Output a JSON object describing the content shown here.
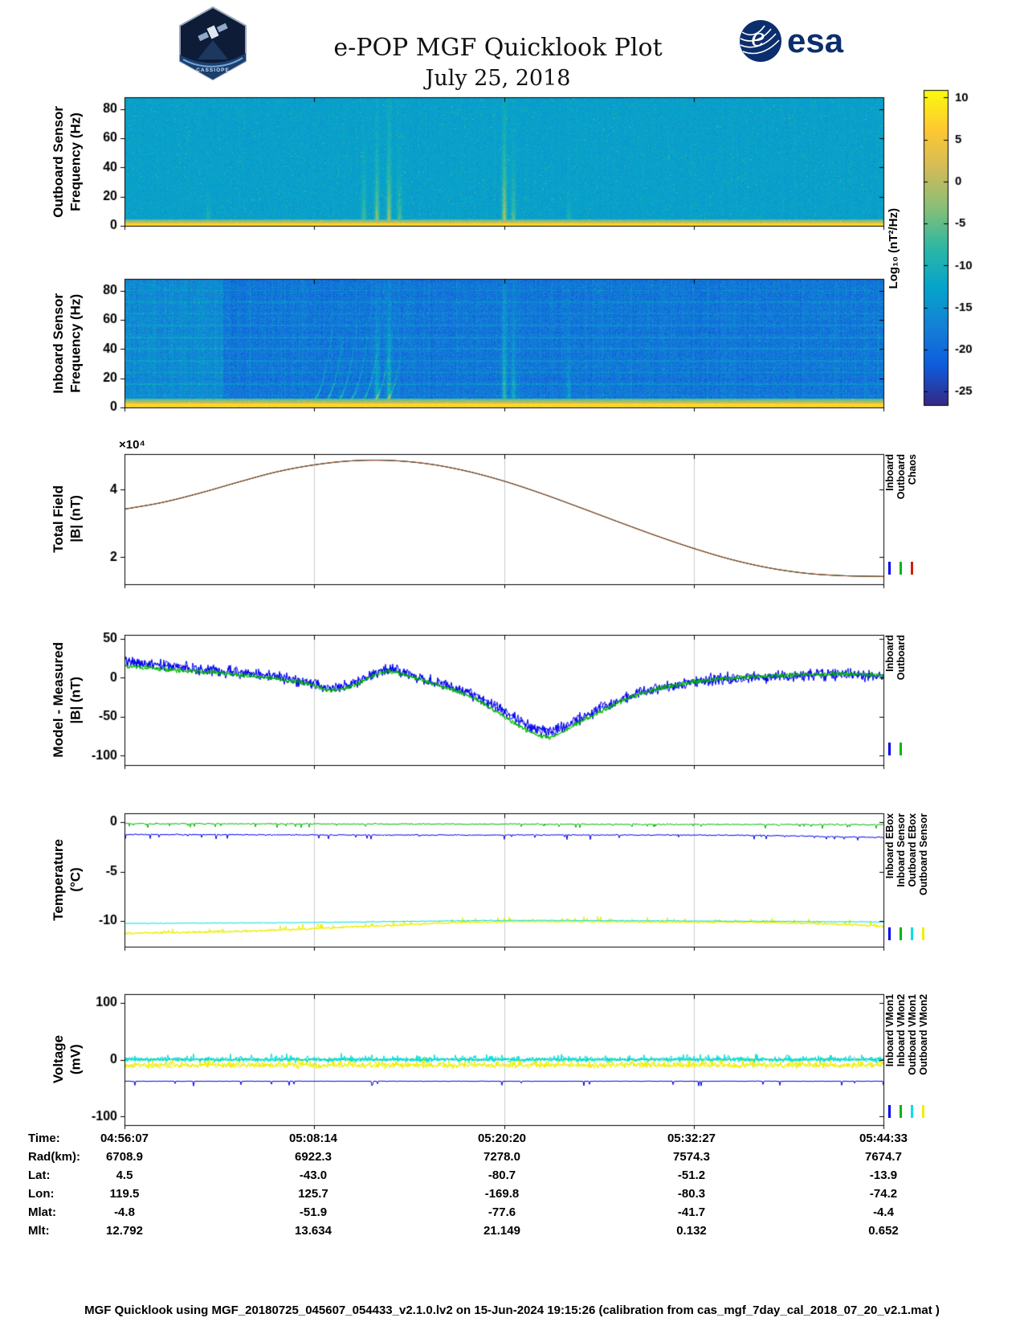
{
  "header": {
    "title": "e-POP MGF Quicklook Plot",
    "date": "July 25, 2018",
    "esa_logo_text": "esa",
    "esa_emblem_letter": "e",
    "cassiope_text": "CASSIOPE"
  },
  "colorbar": {
    "label": "Log₁₀ (nT²/Hz)",
    "ticks": [
      10,
      5,
      0,
      -5,
      -10,
      -15,
      -20,
      -25
    ],
    "range": [
      -26.6,
      10.9
    ]
  },
  "chart_data": [
    {
      "id": "outboard_spectrogram",
      "type": "heatmap",
      "ylabel": "Outboard Sensor\nFrequency (Hz)",
      "ylim": [
        0,
        88
      ],
      "yticks": [
        0,
        20,
        40,
        60,
        80
      ],
      "background_level": -13,
      "noise_sd": 1.8,
      "column_noise_sd": 0.4,
      "speckle_p": 0.004,
      "speckle_amp": 8,
      "bottom_band": {
        "yellow_below_hz": 1.8,
        "yellow_level": 7.5,
        "fade_to_hz": 4.5
      },
      "streaks": [
        {
          "t": 0.11,
          "height_hz": 10,
          "amp": 7
        },
        {
          "t": 0.315,
          "height_hz": 22,
          "amp": 9
        },
        {
          "t": 0.332,
          "height_hz": 30,
          "amp": 12
        },
        {
          "t": 0.348,
          "height_hz": 36,
          "amp": 13
        },
        {
          "t": 0.362,
          "height_hz": 20,
          "amp": 9
        },
        {
          "t": 0.5,
          "height_hz": 40,
          "amp": 14
        },
        {
          "t": 0.512,
          "height_hz": 26,
          "amp": 9
        },
        {
          "t": 0.585,
          "height_hz": 9,
          "amp": 6
        }
      ]
    },
    {
      "id": "inboard_spectrogram",
      "type": "heatmap",
      "ylabel": "Inboard Sensor\nFrequency (Hz)",
      "ylim": [
        0,
        88
      ],
      "yticks": [
        0,
        20,
        40,
        60,
        80
      ],
      "background_level": -18.5,
      "noise_sd": 2.6,
      "column_noise_sd": 1.1,
      "row_noise_sd": 0.7,
      "speckle_p": 0.01,
      "speckle_amp": 7,
      "harmonic_spacing_hz": 8,
      "harmonic_boost": 3,
      "bright_region": {
        "t_end": 0.13,
        "boost": 2.5
      },
      "curves": [
        0.243,
        0.259,
        0.275,
        0.291,
        0.307,
        0.323,
        0.339
      ],
      "curve_span_t": 0.035,
      "curve_max_hz": 72,
      "curve_amp": 9,
      "bottom_band": {
        "yellow_below_hz": 2.5,
        "yellow_level": 7.5,
        "fade_to_hz": 6
      },
      "streaks": [
        {
          "t": 0.332,
          "height_hz": 45,
          "amp": 10
        },
        {
          "t": 0.348,
          "height_hz": 55,
          "amp": 11
        },
        {
          "t": 0.5,
          "height_hz": 60,
          "amp": 12
        },
        {
          "t": 0.512,
          "height_hz": 40,
          "amp": 9
        },
        {
          "t": 0.585,
          "height_hz": 20,
          "amp": 7
        }
      ]
    },
    {
      "id": "total_field",
      "type": "line",
      "ylabel": "Total Field\n|B| (nT)",
      "scale_label": "×10⁴",
      "ylim": [
        1.2,
        5.05
      ],
      "yticks": [
        2,
        4
      ],
      "x": [
        0,
        0.05,
        0.1,
        0.15,
        0.2,
        0.25,
        0.3,
        0.35,
        0.4,
        0.45,
        0.5,
        0.55,
        0.6,
        0.65,
        0.7,
        0.75,
        0.8,
        0.85,
        0.9,
        0.95,
        1
      ],
      "series": [
        {
          "name": "Inboard",
          "color": "#0000ee",
          "values": [
            3.42,
            3.62,
            3.9,
            4.22,
            4.52,
            4.73,
            4.85,
            4.86,
            4.76,
            4.55,
            4.25,
            3.88,
            3.47,
            3.05,
            2.64,
            2.26,
            1.93,
            1.68,
            1.52,
            1.45,
            1.43
          ]
        },
        {
          "name": "Outboard",
          "color": "#00b800",
          "values": [
            3.42,
            3.62,
            3.9,
            4.22,
            4.52,
            4.73,
            4.85,
            4.86,
            4.76,
            4.55,
            4.25,
            3.88,
            3.47,
            3.05,
            2.64,
            2.26,
            1.93,
            1.68,
            1.52,
            1.45,
            1.43
          ]
        },
        {
          "name": "Chaos",
          "color": "#b03a20",
          "values": [
            3.42,
            3.62,
            3.9,
            4.22,
            4.52,
            4.73,
            4.85,
            4.86,
            4.76,
            4.55,
            4.25,
            3.88,
            3.47,
            3.05,
            2.64,
            2.26,
            1.93,
            1.68,
            1.52,
            1.45,
            1.43
          ]
        }
      ],
      "legend": [
        {
          "label": "Inboard",
          "color": "#0000ee"
        },
        {
          "label": "Outboard",
          "color": "#00b800"
        },
        {
          "label": "Chaos",
          "color": "#cc2200"
        }
      ]
    },
    {
      "id": "model_minus_measured",
      "type": "line",
      "ylabel": "Model - Measured\n|B| (nT)",
      "ylim": [
        -112,
        55
      ],
      "yticks": [
        50,
        0,
        -50,
        -100
      ],
      "x": [
        0,
        0.03,
        0.06,
        0.1,
        0.14,
        0.18,
        0.22,
        0.25,
        0.27,
        0.29,
        0.31,
        0.33,
        0.35,
        0.37,
        0.4,
        0.43,
        0.46,
        0.49,
        0.52,
        0.54,
        0.56,
        0.58,
        0.6,
        0.63,
        0.66,
        0.7,
        0.74,
        0.78,
        0.82,
        0.86,
        0.9,
        0.95,
        1
      ],
      "series": [
        {
          "name": "Inboard",
          "color": "#0000ee",
          "passes": 2,
          "noise_sd": 6,
          "values": [
            22,
            18,
            15,
            11,
            8,
            4,
            -2,
            -8,
            -14,
            -12,
            -4,
            6,
            10,
            6,
            -4,
            -12,
            -22,
            -38,
            -55,
            -65,
            -68,
            -62,
            -52,
            -38,
            -26,
            -14,
            -7,
            -2,
            0,
            2,
            3,
            4,
            2
          ]
        },
        {
          "name": "Outboard",
          "color": "#00b800",
          "passes": 2,
          "noise_sd": 2.5,
          "values": [
            15,
            13,
            10,
            8,
            5,
            1,
            -4,
            -10,
            -16,
            -14,
            -6,
            4,
            8,
            4,
            -6,
            -15,
            -26,
            -44,
            -62,
            -72,
            -76,
            -68,
            -57,
            -42,
            -28,
            -15,
            -7,
            -2,
            1,
            3,
            4,
            5,
            3
          ]
        }
      ],
      "legend": [
        {
          "label": "Inboard",
          "color": "#0000ee"
        },
        {
          "label": "Outboard",
          "color": "#00b800"
        }
      ]
    },
    {
      "id": "temperature",
      "type": "line",
      "ylabel": "Temperature\n(°C)",
      "ylim": [
        -12.6,
        0.9
      ],
      "yticks": [
        0,
        -5,
        -10
      ],
      "series": [
        {
          "name": "Inboard EBox",
          "color": "#0000ee",
          "noise_sd": 0.05,
          "spikes": {
            "p": 0.03,
            "v": -0.3
          },
          "x": [
            0,
            0.3,
            0.5,
            0.7,
            0.85,
            0.95,
            1
          ],
          "values": [
            -1.25,
            -1.3,
            -1.3,
            -1.3,
            -1.35,
            -1.5,
            -1.55
          ]
        },
        {
          "name": "Inboard Sensor",
          "color": "#00b800",
          "noise_sd": 0.06,
          "spikes": {
            "p": 0.04,
            "v": -0.25
          },
          "x": [
            0,
            0.5,
            1
          ],
          "values": [
            -0.15,
            -0.2,
            -0.25
          ]
        },
        {
          "name": "Outboard Sensor",
          "color": "#efef00",
          "noise_sd": 0.1,
          "passes": 2,
          "spikes": {
            "p": 0.05,
            "v": 0.3
          },
          "x": [
            0,
            0.15,
            0.3,
            0.45,
            0.55,
            0.7,
            0.85,
            0.95,
            1
          ],
          "values": [
            -11.25,
            -11.05,
            -10.6,
            -10.15,
            -10.05,
            -10.1,
            -10.15,
            -10.35,
            -10.55
          ]
        },
        {
          "name": "Outboard EBox",
          "color": "#00e0e0",
          "noise_sd": 0.04,
          "x": [
            0,
            0.25,
            0.5,
            0.75,
            1
          ],
          "values": [
            -10.25,
            -10.15,
            -9.95,
            -10.0,
            -10.1
          ]
        }
      ],
      "legend": [
        {
          "label": "Inboard EBox",
          "color": "#0000ee"
        },
        {
          "label": "Inboard Sensor",
          "color": "#00b800"
        },
        {
          "label": "Outboard EBox",
          "color": "#00e0e0"
        },
        {
          "label": "Outboard Sensor",
          "color": "#efef00"
        }
      ]
    },
    {
      "id": "voltage",
      "type": "line",
      "ylabel": "Voltage\n(mV)",
      "ylim": [
        -115,
        115
      ],
      "yticks": [
        100,
        0,
        -100
      ],
      "series": [
        {
          "name": "Inboard VMon2",
          "color": "#00b800",
          "noise_sd": 1.5,
          "x": [
            0,
            1
          ],
          "values": [
            0,
            0
          ]
        },
        {
          "name": "Outboard VMon2",
          "color": "#efef00",
          "noise_sd": 4,
          "passes": 2,
          "spikes": {
            "p": 0.1,
            "v": 6
          },
          "x": [
            0,
            1
          ],
          "values": [
            -10,
            -10
          ]
        },
        {
          "name": "Outboard VMon1",
          "color": "#00e0e0",
          "noise_sd": 3.5,
          "passes": 2,
          "spikes": {
            "p": 0.1,
            "v": 5
          },
          "x": [
            0,
            1
          ],
          "values": [
            0,
            0
          ]
        },
        {
          "name": "Inboard VMon1",
          "color": "#0000ee",
          "noise_sd": 0.4,
          "spikes": {
            "p": 0.02,
            "v": -6
          },
          "x": [
            0,
            1
          ],
          "values": [
            -38,
            -38
          ]
        }
      ],
      "legend": [
        {
          "label": "Inboard VMon1",
          "color": "#0000ee"
        },
        {
          "label": "Inboard VMon2",
          "color": "#00b800"
        },
        {
          "label": "Outboard VMon1",
          "color": "#00e0e0"
        },
        {
          "label": "Outboard VMon2",
          "color": "#efef00"
        }
      ]
    }
  ],
  "info_table": {
    "rows": [
      {
        "label": "Time:",
        "values": [
          "04:56:07",
          "05:08:14",
          "05:20:20",
          "05:32:27",
          "05:44:33"
        ]
      },
      {
        "label": "Rad(km):",
        "values": [
          "6708.9",
          "6922.3",
          "7278.0",
          "7574.3",
          "7674.7"
        ]
      },
      {
        "label": "Lat:",
        "values": [
          "4.5",
          "-43.0",
          "-80.7",
          "-51.2",
          "-13.9"
        ]
      },
      {
        "label": "Lon:",
        "values": [
          "119.5",
          "125.7",
          "-169.8",
          "-80.3",
          "-74.2"
        ]
      },
      {
        "label": "Mlat:",
        "values": [
          "-4.8",
          "-51.9",
          "-77.6",
          "-41.7",
          "-4.4"
        ]
      },
      {
        "label": "Mlt:",
        "values": [
          "12.792",
          "13.634",
          "21.149",
          "0.132",
          "0.652"
        ]
      }
    ]
  },
  "footer": {
    "text": "MGF Quicklook using MGF_20180725_045607_054433_v2.1.0.lv2 on 15-Jun-2024 19:15:26 (calibration from cas_mgf_7day_cal_2018_07_20_v2.1.mat )"
  }
}
